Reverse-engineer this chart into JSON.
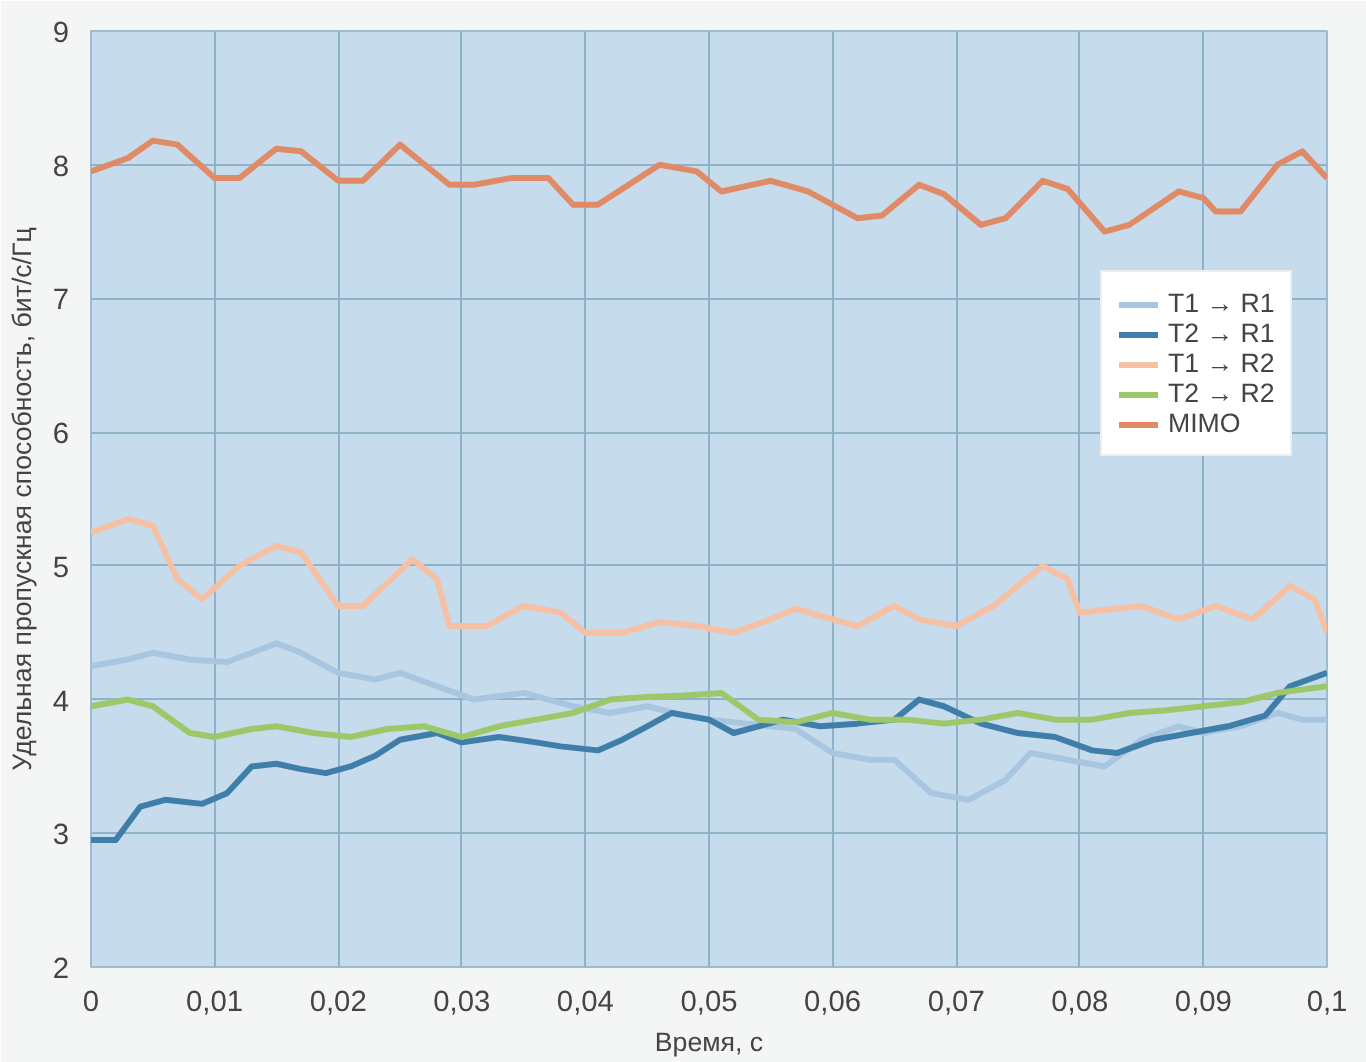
{
  "chart_data": {
    "type": "line",
    "xlabel": "Время, с",
    "ylabel": "Удельная пропускная способность, бит/с/Гц",
    "xlim": [
      0,
      0.1
    ],
    "ylim": [
      2,
      9
    ],
    "xticks": [
      0,
      {
        "value": 0.01,
        "label": "0,01"
      },
      {
        "value": 0.02,
        "label": "0,02"
      },
      {
        "value": 0.03,
        "label": "0,03"
      },
      {
        "value": 0.04,
        "label": "0,04"
      },
      {
        "value": 0.05,
        "label": "0,05"
      },
      {
        "value": 0.06,
        "label": "0,06"
      },
      {
        "value": 0.07,
        "label": "0,07"
      },
      {
        "value": 0.08,
        "label": "0,08"
      },
      {
        "value": 0.09,
        "label": "0,09"
      },
      {
        "value": 0.1,
        "label": "0,1"
      }
    ],
    "yticks": [
      2,
      3,
      4,
      5,
      6,
      7,
      8,
      9
    ],
    "grid": true,
    "legend": "right",
    "marker": "none",
    "line_style": "solid",
    "series": [
      {
        "name": "T1 → R1",
        "color": "#a9c6e0",
        "x": [
          0,
          0.003,
          0.005,
          0.008,
          0.011,
          0.013,
          0.015,
          0.017,
          0.02,
          0.023,
          0.025,
          0.028,
          0.031,
          0.035,
          0.037,
          0.039,
          0.042,
          0.045,
          0.048,
          0.05,
          0.055,
          0.057,
          0.06,
          0.063,
          0.065,
          0.068,
          0.071,
          0.074,
          0.076,
          0.079,
          0.082,
          0.085,
          0.088,
          0.09,
          0.093,
          0.096,
          0.098,
          0.1
        ],
        "values": [
          4.25,
          4.3,
          4.35,
          4.3,
          4.28,
          4.35,
          4.42,
          4.35,
          4.2,
          4.15,
          4.2,
          4.1,
          4.0,
          4.05,
          4.0,
          3.95,
          3.9,
          3.95,
          3.88,
          3.85,
          3.8,
          3.78,
          3.6,
          3.55,
          3.55,
          3.3,
          3.25,
          3.4,
          3.6,
          3.55,
          3.5,
          3.7,
          3.8,
          3.75,
          3.8,
          3.9,
          3.85,
          3.85
        ]
      },
      {
        "name": "T2 → R1",
        "color": "#3e7ea8",
        "x": [
          0,
          0.002,
          0.004,
          0.006,
          0.009,
          0.011,
          0.013,
          0.015,
          0.017,
          0.019,
          0.021,
          0.023,
          0.025,
          0.028,
          0.03,
          0.033,
          0.036,
          0.038,
          0.041,
          0.043,
          0.045,
          0.047,
          0.05,
          0.052,
          0.054,
          0.056,
          0.059,
          0.062,
          0.065,
          0.067,
          0.069,
          0.072,
          0.075,
          0.078,
          0.081,
          0.083,
          0.086,
          0.089,
          0.092,
          0.095,
          0.097,
          0.1
        ],
        "values": [
          2.95,
          2.95,
          3.2,
          3.25,
          3.22,
          3.3,
          3.5,
          3.52,
          3.48,
          3.45,
          3.5,
          3.58,
          3.7,
          3.75,
          3.68,
          3.72,
          3.68,
          3.65,
          3.62,
          3.7,
          3.8,
          3.9,
          3.85,
          3.75,
          3.8,
          3.85,
          3.8,
          3.82,
          3.85,
          4.0,
          3.95,
          3.82,
          3.75,
          3.72,
          3.62,
          3.6,
          3.7,
          3.75,
          3.8,
          3.88,
          4.1,
          4.2
        ]
      },
      {
        "name": "T1 → R2",
        "color": "#f5c0a4",
        "x": [
          0,
          0.003,
          0.005,
          0.007,
          0.009,
          0.012,
          0.015,
          0.017,
          0.02,
          0.022,
          0.026,
          0.028,
          0.029,
          0.032,
          0.035,
          0.038,
          0.04,
          0.043,
          0.046,
          0.049,
          0.052,
          0.055,
          0.057,
          0.06,
          0.062,
          0.065,
          0.067,
          0.07,
          0.073,
          0.075,
          0.077,
          0.079,
          0.08,
          0.085,
          0.088,
          0.091,
          0.094,
          0.097,
          0.099,
          0.1
        ],
        "values": [
          5.25,
          5.35,
          5.3,
          4.9,
          4.75,
          5.0,
          5.15,
          5.1,
          4.7,
          4.7,
          5.05,
          4.9,
          4.55,
          4.55,
          4.7,
          4.65,
          4.5,
          4.5,
          4.58,
          4.55,
          4.5,
          4.6,
          4.68,
          4.6,
          4.55,
          4.7,
          4.6,
          4.55,
          4.7,
          4.85,
          5.0,
          4.9,
          4.65,
          4.7,
          4.6,
          4.7,
          4.6,
          4.85,
          4.75,
          4.5
        ]
      },
      {
        "name": "T2 → R2",
        "color": "#9cc86a",
        "x": [
          0,
          0.003,
          0.005,
          0.008,
          0.01,
          0.013,
          0.015,
          0.018,
          0.021,
          0.024,
          0.027,
          0.03,
          0.033,
          0.036,
          0.039,
          0.042,
          0.045,
          0.048,
          0.051,
          0.054,
          0.057,
          0.06,
          0.063,
          0.066,
          0.069,
          0.072,
          0.075,
          0.078,
          0.081,
          0.084,
          0.087,
          0.09,
          0.093,
          0.096,
          0.1
        ],
        "values": [
          3.95,
          4.0,
          3.95,
          3.75,
          3.72,
          3.78,
          3.8,
          3.75,
          3.72,
          3.78,
          3.8,
          3.72,
          3.8,
          3.85,
          3.9,
          4.0,
          4.02,
          4.03,
          4.05,
          3.85,
          3.83,
          3.9,
          3.85,
          3.85,
          3.82,
          3.85,
          3.9,
          3.85,
          3.85,
          3.9,
          3.92,
          3.95,
          3.98,
          4.05,
          4.1
        ]
      },
      {
        "name": "MIMO",
        "color": "#e08a66",
        "x": [
          0,
          0.003,
          0.005,
          0.007,
          0.01,
          0.012,
          0.015,
          0.017,
          0.02,
          0.022,
          0.025,
          0.027,
          0.029,
          0.031,
          0.034,
          0.037,
          0.039,
          0.041,
          0.046,
          0.049,
          0.051,
          0.055,
          0.058,
          0.062,
          0.064,
          0.067,
          0.069,
          0.072,
          0.074,
          0.077,
          0.079,
          0.082,
          0.084,
          0.088,
          0.09,
          0.091,
          0.093,
          0.096,
          0.098,
          0.1
        ],
        "values": [
          7.95,
          8.05,
          8.18,
          8.15,
          7.9,
          7.9,
          8.12,
          8.1,
          7.88,
          7.88,
          8.15,
          8.0,
          7.85,
          7.85,
          7.9,
          7.9,
          7.7,
          7.7,
          8.0,
          7.95,
          7.8,
          7.88,
          7.8,
          7.6,
          7.62,
          7.85,
          7.78,
          7.55,
          7.6,
          7.88,
          7.82,
          7.5,
          7.55,
          7.8,
          7.75,
          7.65,
          7.65,
          8.0,
          8.1,
          7.9
        ]
      }
    ]
  }
}
